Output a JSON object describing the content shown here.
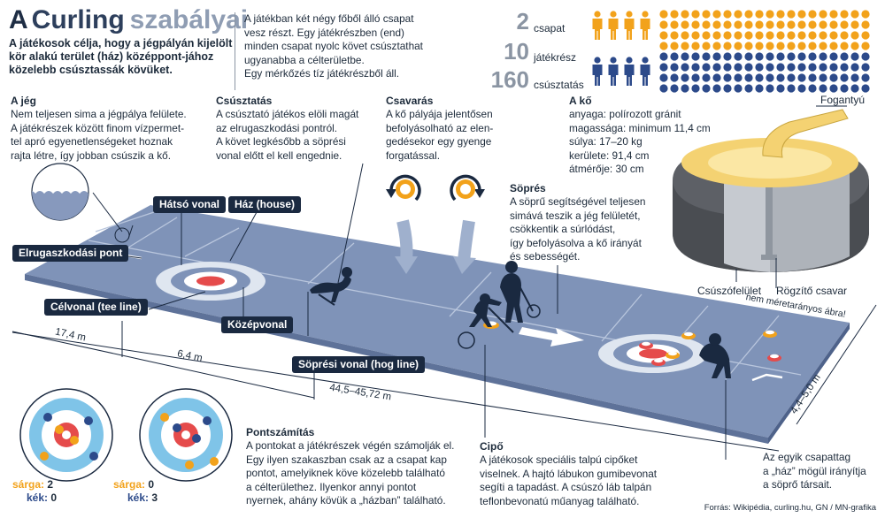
{
  "title": {
    "part1": "A",
    "part2": "Curling",
    "part3": "szabályai"
  },
  "intro": "A játékosok célja, hogy a jégpályán kijelölt kör alakú terület (ház) középpont-jához közelebb csúsztassák kövüket.",
  "game_text": {
    "line1": "A játékban két négy főből álló csapat",
    "line2": "vesz részt. Egy játékrészben (end)",
    "line3": "minden csapat nyolc követ csúsztathat",
    "line4": "ugyanabba a célterületbe.",
    "line5": "Egy mérkőzés tíz játékrészből áll."
  },
  "stats": [
    {
      "number": "2",
      "label": "csapat"
    },
    {
      "number": "10",
      "label": "játékrész"
    },
    {
      "number": "160",
      "label": "csúsztatás"
    }
  ],
  "colors": {
    "yellow": "#f2a21b",
    "blue": "#2c4a8a",
    "dark": "#1a2940",
    "ice": "#7f93b8",
    "stone": "#5d6066"
  },
  "sections": {
    "jeg": {
      "title": "A jég",
      "l1": "Nem teljesen sima a jégpálya felülete.",
      "l2": "A játékrészek között finom vízpermet-",
      "l3": "tel apró egyenetlenségeket hoznak",
      "l4": "rajta létre, így jobban csúszik a kő."
    },
    "csusztatas": {
      "title": "Csúsztatás",
      "l1": "A csúsztató játékos elöli magát",
      "l2": "az elrugaszkodási pontról.",
      "l3": "A követ legkésőbb a söprési",
      "l4": "vonal előtt el kell engednie."
    },
    "csavaras": {
      "title": "Csavarás",
      "l1": "A kő pályája jelentősen",
      "l2": "befolyásolható az elen-",
      "l3": "gedésekor egy gyenge",
      "l4": "forgatással."
    },
    "ko": {
      "title": "A kő",
      "l1": "anyaga: polírozott gránit",
      "l2": "magassága: minimum 11,4 cm",
      "l3": "súlya: 17–20 kg",
      "l4": "kerülete: 91,4 cm",
      "l5": "átmérője: 30 cm"
    },
    "sopres": {
      "title": "Söprés",
      "l1": "A söprű segítségével teljesen",
      "l2": "simává teszik a jég felületét,",
      "l3": "csökkentik a súrlódást,",
      "l4": "így befolyásolva a kő irányát",
      "l5": "és sebességét."
    },
    "pontszamitas": {
      "title": "Pontszámítás",
      "l1": "A pontokat a játékrészek végén számolják el.",
      "l2": "Egy ilyen szakaszban csak az a csapat kap",
      "l3": "pontot, amelyiknek köve közelebb található",
      "l4": "a célterülethez. Ilyenkor annyi pontot",
      "l5": "nyernek, ahány kövük a „házban” található."
    },
    "cipo": {
      "title": "Cipő",
      "l1": "A játékosok speciális talpú cipőket",
      "l2": "viselnek. A hajtó lábukon gumibevonat",
      "l3": "segíti a tapadást. A csúszó láb talpán",
      "l4": "teflonbevonatú műanyag található."
    },
    "captain": {
      "l1": "Az egyik csapattag",
      "l2": "a „ház” mögül irányítja",
      "l3": "a söprő társait."
    }
  },
  "labels": {
    "hatso_vonal": "Hátsó vonal",
    "haz": "Ház (house)",
    "elrugaszkodasi": "Elrugaszkodási pont",
    "celvonal": "Célvonal (tee line)",
    "kozepvonal": "Középvonal",
    "sopresi_vonal": "Söprési vonal (hog line)",
    "fogantyu": "Fogantyú",
    "csuszofelulet": "Csúszófelület",
    "rogzito": "Rögzítő csavar",
    "scale_note": "nem méretarányos ábra!"
  },
  "dimensions": {
    "d1": "17,4 m",
    "d2": "6,4 m",
    "d3": "44,5–45,72 m",
    "d4": "4,4–5,0 m"
  },
  "scores": [
    {
      "yellow_label": "sárga:",
      "yellow": "2",
      "blue_label": "kék:",
      "blue": "0"
    },
    {
      "yellow_label": "sárga:",
      "yellow": "0",
      "blue_label": "kék:",
      "blue": "3"
    }
  ],
  "source": "Forrás: Wikipédia, curling.hu, GN / MN-grafika"
}
